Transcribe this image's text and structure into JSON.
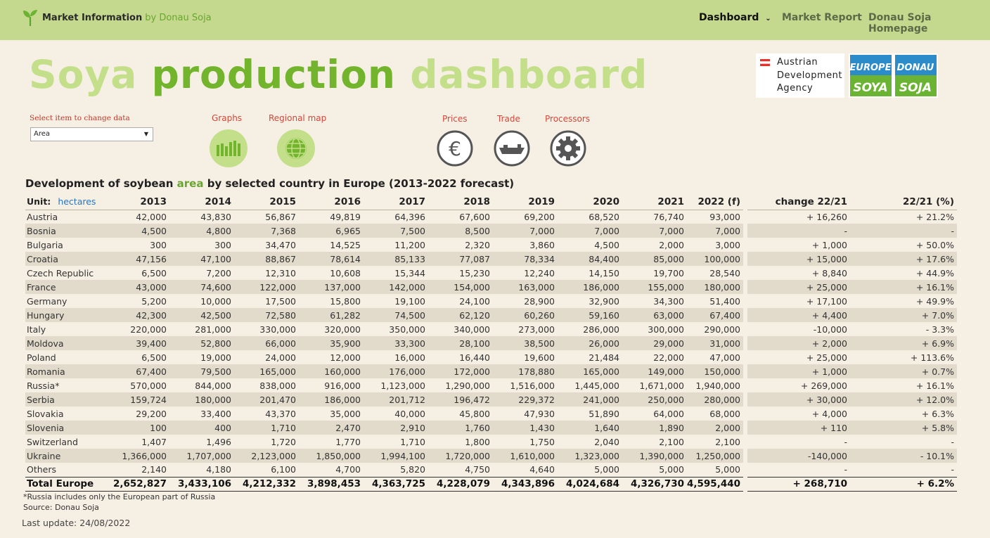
{
  "brand": {
    "name": "Market Information",
    "by": "by Donau Soja"
  },
  "nav": {
    "dashboard": "Dashboard",
    "market_report": "Market Report",
    "homepage": "Donau Soja Homepage"
  },
  "title": {
    "part1": "Soya",
    "part2": "production",
    "part3": "dashboard"
  },
  "partner": {
    "line1": "Austrian",
    "line2": "Development",
    "line3": "Agency",
    "logo_top_left": "EUROPE",
    "logo_top_right": "DONAU",
    "logo_bottom_left": "SOYA",
    "logo_bottom_right": "SOJA"
  },
  "selector": {
    "label": "Select item to change data",
    "value": "Area"
  },
  "icons": {
    "graphs": "Graphs",
    "regional_map": "Regional map",
    "prices": "Prices",
    "trade": "Trade",
    "processors": "Processors"
  },
  "colors": {
    "accent_green": "#72b52c",
    "pale_green": "#c4df8a",
    "topbar": "#c4d98d",
    "label_red": "#d2473a"
  },
  "table": {
    "title_pre": "Development of soybean",
    "title_highlight": "area",
    "title_post": "by selected country in Europe (2013-2022 forecast)",
    "unit_label": "Unit:",
    "unit_value": "hectares",
    "headers": [
      "2013",
      "2014",
      "2015",
      "2016",
      "2017",
      "2018",
      "2019",
      "2020",
      "2021",
      "2022 (f)",
      "change 22/21",
      "22/21 (%)"
    ],
    "rows": [
      {
        "name": "Austria",
        "values": [
          "42,000",
          "43,830",
          "56,867",
          "49,819",
          "64,396",
          "67,600",
          "69,200",
          "68,520",
          "76,740",
          "93,000"
        ],
        "change": "+ 16,260",
        "pct": "+ 21.2%"
      },
      {
        "name": "Bosnia",
        "values": [
          "4,500",
          "4,800",
          "7,368",
          "6,965",
          "7,500",
          "8,500",
          "7,000",
          "7,000",
          "7,000",
          "7,000"
        ],
        "change": "-",
        "pct": "-"
      },
      {
        "name": "Bulgaria",
        "values": [
          "300",
          "300",
          "34,470",
          "14,525",
          "11,200",
          "2,320",
          "3,860",
          "4,500",
          "2,000",
          "3,000"
        ],
        "change": "+ 1,000",
        "pct": "+ 50.0%"
      },
      {
        "name": "Croatia",
        "values": [
          "47,156",
          "47,100",
          "88,867",
          "78,614",
          "85,133",
          "77,087",
          "78,334",
          "84,400",
          "85,000",
          "100,000"
        ],
        "change": "+ 15,000",
        "pct": "+ 17.6%"
      },
      {
        "name": "Czech Republic",
        "values": [
          "6,500",
          "7,200",
          "12,310",
          "10,608",
          "15,344",
          "15,230",
          "12,240",
          "14,150",
          "19,700",
          "28,540"
        ],
        "change": "+ 8,840",
        "pct": "+ 44.9%"
      },
      {
        "name": "France",
        "values": [
          "43,000",
          "74,600",
          "122,000",
          "137,000",
          "142,000",
          "154,000",
          "163,000",
          "186,000",
          "155,000",
          "180,000"
        ],
        "change": "+ 25,000",
        "pct": "+ 16.1%"
      },
      {
        "name": "Germany",
        "values": [
          "5,200",
          "10,000",
          "17,500",
          "15,800",
          "19,100",
          "24,100",
          "28,900",
          "32,900",
          "34,300",
          "51,400"
        ],
        "change": "+ 17,100",
        "pct": "+ 49.9%"
      },
      {
        "name": "Hungary",
        "values": [
          "42,300",
          "42,500",
          "72,580",
          "61,282",
          "74,500",
          "62,120",
          "60,260",
          "59,160",
          "63,000",
          "67,400"
        ],
        "change": "+ 4,400",
        "pct": "+ 7.0%"
      },
      {
        "name": "Italy",
        "values": [
          "220,000",
          "281,000",
          "330,000",
          "320,000",
          "350,000",
          "340,000",
          "273,000",
          "286,000",
          "300,000",
          "290,000"
        ],
        "change": "-10,000",
        "pct": "- 3.3%"
      },
      {
        "name": "Moldova",
        "values": [
          "39,400",
          "52,800",
          "66,000",
          "35,900",
          "33,300",
          "28,100",
          "38,500",
          "26,000",
          "29,000",
          "31,000"
        ],
        "change": "+ 2,000",
        "pct": "+ 6.9%"
      },
      {
        "name": "Poland",
        "values": [
          "6,500",
          "19,000",
          "24,000",
          "12,000",
          "16,000",
          "16,440",
          "19,600",
          "21,484",
          "22,000",
          "47,000"
        ],
        "change": "+ 25,000",
        "pct": "+ 113.6%"
      },
      {
        "name": "Romania",
        "values": [
          "67,400",
          "79,500",
          "165,000",
          "160,000",
          "176,000",
          "172,000",
          "178,880",
          "165,000",
          "149,000",
          "150,000"
        ],
        "change": "+ 1,000",
        "pct": "+ 0.7%"
      },
      {
        "name": "Russia*",
        "values": [
          "570,000",
          "844,000",
          "838,000",
          "916,000",
          "1,123,000",
          "1,290,000",
          "1,516,000",
          "1,445,000",
          "1,671,000",
          "1,940,000"
        ],
        "change": "+ 269,000",
        "pct": "+ 16.1%"
      },
      {
        "name": "Serbia",
        "values": [
          "159,724",
          "180,000",
          "201,470",
          "186,000",
          "201,712",
          "196,472",
          "229,372",
          "241,000",
          "250,000",
          "280,000"
        ],
        "change": "+ 30,000",
        "pct": "+ 12.0%"
      },
      {
        "name": "Slovakia",
        "values": [
          "29,200",
          "33,400",
          "43,370",
          "35,000",
          "40,000",
          "45,800",
          "47,930",
          "51,890",
          "64,000",
          "68,000"
        ],
        "change": "+ 4,000",
        "pct": "+ 6.3%"
      },
      {
        "name": "Slovenia",
        "values": [
          "100",
          "400",
          "1,710",
          "2,470",
          "2,910",
          "1,760",
          "1,430",
          "1,640",
          "1,890",
          "2,000"
        ],
        "change": "+ 110",
        "pct": "+ 5.8%"
      },
      {
        "name": "Switzerland",
        "values": [
          "1,407",
          "1,496",
          "1,720",
          "1,770",
          "1,710",
          "1,800",
          "1,750",
          "2,040",
          "2,100",
          "2,100"
        ],
        "change": "-",
        "pct": "-"
      },
      {
        "name": "Ukraine",
        "values": [
          "1,366,000",
          "1,707,000",
          "2,123,000",
          "1,850,000",
          "1,994,100",
          "1,720,000",
          "1,610,000",
          "1,323,000",
          "1,390,000",
          "1,250,000"
        ],
        "change": "-140,000",
        "pct": "- 10.1%"
      },
      {
        "name": "Others",
        "values": [
          "2,140",
          "4,180",
          "6,100",
          "4,700",
          "5,820",
          "4,750",
          "4,640",
          "5,000",
          "5,000",
          "5,000"
        ],
        "change": "-",
        "pct": "-"
      }
    ],
    "total": {
      "name": "Total Europe",
      "values": [
        "2,652,827",
        "3,433,106",
        "4,212,332",
        "3,898,453",
        "4,363,725",
        "4,228,079",
        "4,343,896",
        "4,024,684",
        "4,326,730",
        "4,595,440"
      ],
      "change": "+ 268,710",
      "pct": "+ 6.2%"
    }
  },
  "footer": {
    "note": "*Russia includes only the European part of Russia",
    "source": "Source: Donau Soja",
    "last_update": "Last update: 24/08/2022"
  }
}
